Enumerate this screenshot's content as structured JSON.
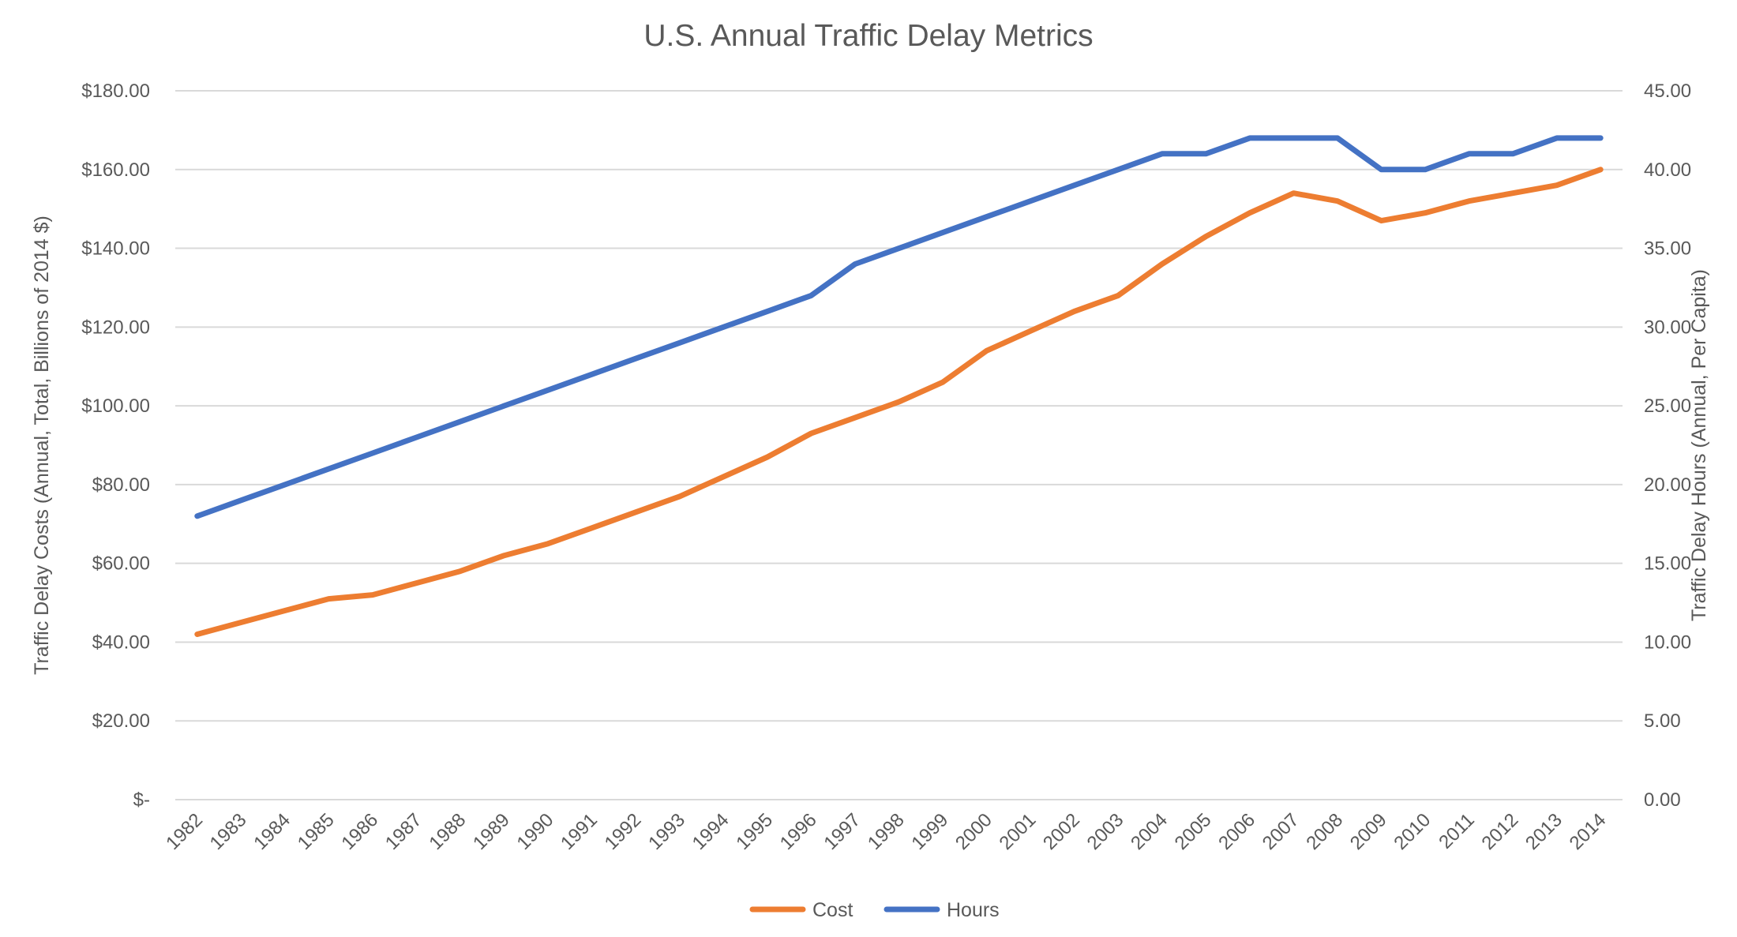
{
  "chart_data": {
    "type": "line",
    "title": "U.S. Annual Traffic Delay Metrics",
    "xlabel": "",
    "ylabel": "Traffic Delay Costs (Annual, Total, Billions of 2014 $)",
    "y2label": "Traffic Delay Hours (Annual, Per Capita)",
    "ylim": [
      0,
      180
    ],
    "y2lim": [
      0,
      45
    ],
    "grid": true,
    "legend": "bottom",
    "yticks": [
      0,
      20,
      40,
      60,
      80,
      100,
      120,
      140,
      160,
      180
    ],
    "ytick_labels": [
      "$-",
      "$20.00",
      "$40.00",
      "$60.00",
      "$80.00",
      "$100.00",
      "$120.00",
      "$140.00",
      "$160.00",
      "$180.00"
    ],
    "y2ticks": [
      0,
      5,
      10,
      15,
      20,
      25,
      30,
      35,
      40,
      45
    ],
    "y2tick_labels": [
      "0.00",
      "5.00",
      "10.00",
      "15.00",
      "20.00",
      "25.00",
      "30.00",
      "35.00",
      "40.00",
      "45.00"
    ],
    "categories": [
      "1982",
      "1983",
      "1984",
      "1985",
      "1986",
      "1987",
      "1988",
      "1989",
      "1990",
      "1991",
      "1992",
      "1993",
      "1994",
      "1995",
      "1996",
      "1997",
      "1998",
      "1999",
      "2000",
      "2001",
      "2002",
      "2003",
      "2004",
      "2005",
      "2006",
      "2007",
      "2008",
      "2009",
      "2010",
      "2011",
      "2012",
      "2013",
      "2014"
    ],
    "series": [
      {
        "name": "Cost",
        "axis": "left",
        "color": "#ed7d31",
        "values": [
          42,
          45,
          48,
          51,
          52,
          55,
          58,
          62,
          65,
          69,
          73,
          77,
          82,
          87,
          93,
          97,
          101,
          106,
          114,
          119,
          124,
          128,
          136,
          143,
          149,
          154,
          152,
          147,
          149,
          152,
          154,
          156,
          160
        ]
      },
      {
        "name": "Hours",
        "axis": "right",
        "color": "#4472c4",
        "values": [
          18,
          19,
          20,
          21,
          22,
          23,
          24,
          25,
          26,
          27,
          28,
          29,
          30,
          31,
          32,
          34,
          35,
          36,
          37,
          38,
          39,
          40,
          41,
          41,
          42,
          42,
          42,
          40,
          40,
          41,
          41,
          42,
          42
        ]
      }
    ]
  }
}
